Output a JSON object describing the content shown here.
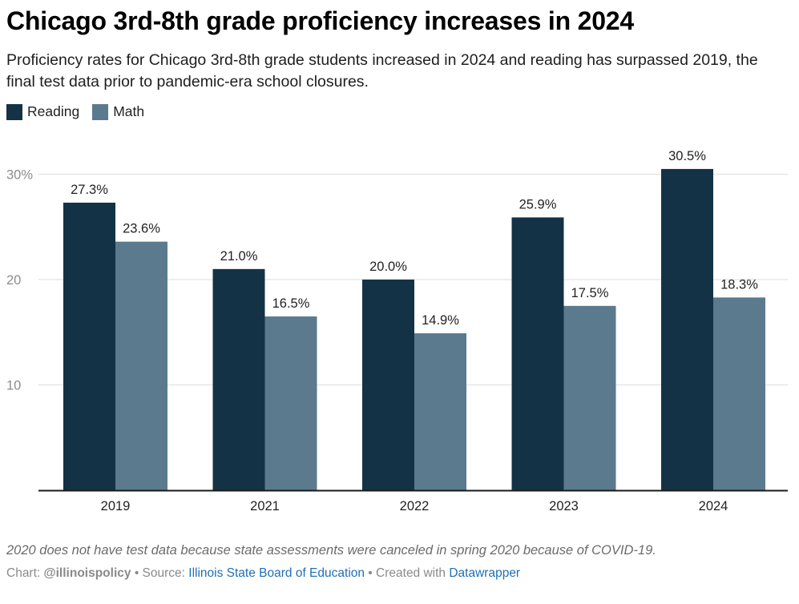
{
  "title": "Chicago 3rd-8th grade proficiency increases in 2024",
  "subtitle": "Proficiency rates for Chicago 3rd-8th grade students increased in 2024 and reading has surpassed 2019, the final test data prior to pandemic-era school closures.",
  "colors": {
    "reading": "#143246",
    "math": "#5b7a8e",
    "grid": "#dedede",
    "axis": "#1a1a1a"
  },
  "chart_data": {
    "type": "bar",
    "title": "Chicago 3rd-8th grade proficiency increases in 2024",
    "categories": [
      "2019",
      "2021",
      "2022",
      "2023",
      "2024"
    ],
    "series": [
      {
        "name": "Reading",
        "values": [
          27.3,
          21.0,
          20.0,
          25.9,
          30.5
        ],
        "labels": [
          "27.3%",
          "21.0%",
          "20.0%",
          "25.9%",
          "30.5%"
        ]
      },
      {
        "name": "Math",
        "values": [
          23.6,
          16.5,
          14.9,
          17.5,
          18.3
        ],
        "labels": [
          "23.6%",
          "16.5%",
          "14.9%",
          "17.5%",
          "18.3%"
        ]
      }
    ],
    "yticks": [
      {
        "value": 10,
        "label": "10"
      },
      {
        "value": 20,
        "label": "20"
      },
      {
        "value": 30,
        "label": "30%"
      }
    ],
    "ylim": [
      0,
      30
    ],
    "grid": true,
    "legend_position": "top-left"
  },
  "note": "2020 does not have test data because state assessments were canceled in spring 2020 because of COVID-19.",
  "footer": {
    "chart_prefix": "Chart: ",
    "chart_by": "@illinoispolicy",
    "sep1": " • Source: ",
    "source": "Illinois State Board of Education",
    "sep2": " • Created with ",
    "tool": "Datawrapper"
  }
}
